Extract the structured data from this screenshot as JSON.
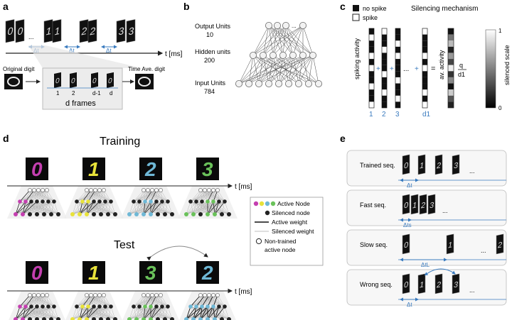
{
  "panels": {
    "a": {
      "letter": "a",
      "delta_t": "Δt",
      "time_axis": "t [ms]",
      "original_digit": "Original digit",
      "time_ave_digit": "Time Ave. digit",
      "frame_labels": [
        "1",
        "2",
        "d-1",
        "d"
      ],
      "d_frames": "d frames",
      "ellipsis": "..."
    },
    "b": {
      "letter": "b",
      "output_units": "Output Units",
      "output_count": "10",
      "hidden_units": "Hidden units",
      "hidden_count": "200",
      "input_units": "Input Units",
      "input_count": "784",
      "ellipsis": "..."
    },
    "c": {
      "letter": "c",
      "legend_no_spike": "no spike",
      "legend_spike": "spike",
      "title": "Silencing mechanism",
      "ylabel": "spiking activity",
      "av_activity": "av. activity",
      "q": "q",
      "d1": "d1",
      "column_labels": [
        "1",
        "2",
        "3",
        "d1"
      ],
      "scale_label": "silenced scale",
      "scale_max": "1",
      "scale_min": "0",
      "plus": "+",
      "equals": "=",
      "ellipsis": "..."
    },
    "d": {
      "letter": "d",
      "training": "Training",
      "test": "Test",
      "time_axis": "t [ms]",
      "training_digits": [
        "0",
        "1",
        "2",
        "3"
      ],
      "test_digits": [
        "0",
        "1",
        "3",
        "2"
      ],
      "legend": {
        "active_node": "Active Node",
        "silenced_node": "Silenced node",
        "active_weight": "Active weight",
        "silenced_weight": "Silenced weight",
        "non_trained": "Non-trained",
        "active_node2": "active node"
      },
      "colors": {
        "magenta": "#c43fb0",
        "yellow": "#e8e23a",
        "cyan": "#6fb8d6",
        "green": "#6ac25a"
      }
    },
    "e": {
      "letter": "e",
      "sequences": [
        {
          "label": "Trained seq.",
          "dt": "Δt"
        },
        {
          "label": "Fast seq.",
          "dt": "Δts"
        },
        {
          "label": "Slow seq.",
          "dt": "ΔtL"
        },
        {
          "label": "Wrong seq.",
          "dt": "Δt"
        }
      ],
      "ellipsis": "..."
    }
  }
}
